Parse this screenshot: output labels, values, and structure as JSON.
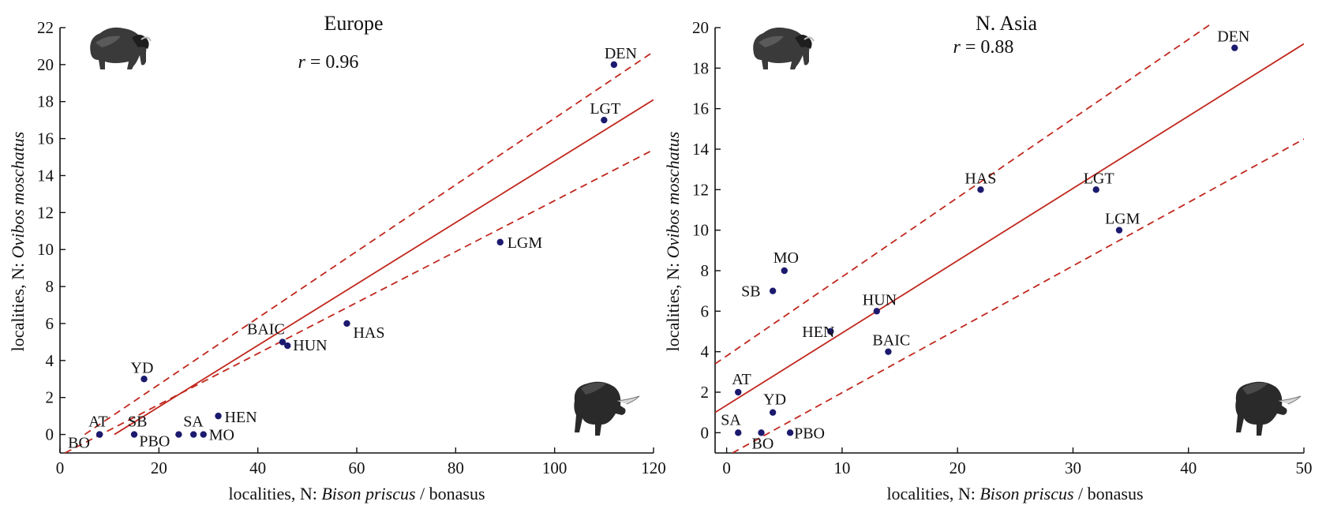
{
  "colors": {
    "points": "#1c1a6e",
    "fit_line": "#c0281e",
    "axes": "#111111"
  },
  "icons": [
    "musk-ox-icon",
    "bison-icon"
  ],
  "chart_data": [
    {
      "type": "scatter",
      "title": "Europe",
      "annotation": {
        "symbol": "r",
        "text": " = 0.96"
      },
      "xlabel": {
        "prefix": "localities, N: ",
        "italic": "Bison priscus",
        "suffix": " / bonasus"
      },
      "ylabel": {
        "prefix": "localities, N: ",
        "italic": "Ovibos moschatus"
      },
      "xlim": [
        0,
        120
      ],
      "ylim": [
        -1,
        22
      ],
      "xticks": [
        0,
        20,
        40,
        60,
        80,
        100,
        120
      ],
      "yticks": [
        0,
        2,
        4,
        6,
        8,
        10,
        12,
        14,
        16,
        18,
        20,
        22
      ],
      "grid": false,
      "points": [
        {
          "label": "DEN",
          "x": 112,
          "y": 20
        },
        {
          "label": "LGT",
          "x": 110,
          "y": 17
        },
        {
          "label": "LGM",
          "x": 89,
          "y": 10.4
        },
        {
          "label": "HAS",
          "x": 58,
          "y": 6
        },
        {
          "label": "BAIC",
          "x": 45,
          "y": 5
        },
        {
          "label": "HUN",
          "x": 46,
          "y": 4.8
        },
        {
          "label": "YD",
          "x": 17,
          "y": 3
        },
        {
          "label": "HEN",
          "x": 32,
          "y": 1
        },
        {
          "label": "SA",
          "x": 27,
          "y": 0
        },
        {
          "label": "MO",
          "x": 29,
          "y": 0
        },
        {
          "label": "PBO",
          "x": 24,
          "y": 0
        },
        {
          "label": "SB",
          "x": 15,
          "y": 0
        },
        {
          "label": "AT",
          "x": 8,
          "y": 0
        },
        {
          "label": "BO",
          "x": 8,
          "y": 0
        }
      ],
      "fit": {
        "x": [
          11,
          120
        ],
        "y": [
          0,
          18.1
        ]
      },
      "ci_upper": {
        "x": [
          5,
          120
        ],
        "y": [
          0,
          20.7
        ]
      },
      "ci_lower": {
        "x": [
          1,
          120
        ],
        "y": [
          -1,
          15.4
        ]
      }
    },
    {
      "type": "scatter",
      "title": "N. Asia",
      "annotation": {
        "symbol": "r",
        "text": " = 0.88"
      },
      "xlabel": {
        "prefix": "localities, N: ",
        "italic": "Bison priscus",
        "suffix": " / bonasus"
      },
      "ylabel": {
        "prefix": "localities, N: ",
        "italic": "Ovibos moschatus"
      },
      "xlim": [
        -1,
        50
      ],
      "ylim": [
        -1,
        20
      ],
      "xticks": [
        0,
        10,
        20,
        30,
        40,
        50
      ],
      "yticks": [
        0,
        2,
        4,
        6,
        8,
        10,
        12,
        14,
        16,
        18,
        20
      ],
      "grid": false,
      "points": [
        {
          "label": "DEN",
          "x": 44,
          "y": 19
        },
        {
          "label": "LGT",
          "x": 32,
          "y": 12
        },
        {
          "label": "LGM",
          "x": 34,
          "y": 10
        },
        {
          "label": "HAS",
          "x": 22,
          "y": 12
        },
        {
          "label": "MO",
          "x": 5,
          "y": 8
        },
        {
          "label": "SB",
          "x": 4,
          "y": 7
        },
        {
          "label": "HUN",
          "x": 13,
          "y": 6
        },
        {
          "label": "HEN",
          "x": 9,
          "y": 5
        },
        {
          "label": "BAIC",
          "x": 14,
          "y": 4
        },
        {
          "label": "AT",
          "x": 1,
          "y": 2
        },
        {
          "label": "YD",
          "x": 4,
          "y": 1
        },
        {
          "label": "SA",
          "x": 1,
          "y": 0
        },
        {
          "label": "BO",
          "x": 3,
          "y": 0
        },
        {
          "label": "PBO",
          "x": 5.5,
          "y": 0
        }
      ],
      "fit": {
        "x": [
          -1,
          50
        ],
        "y": [
          1,
          19.2
        ]
      },
      "ci_upper": {
        "x": [
          -1,
          42
        ],
        "y": [
          3.4,
          20.2
        ]
      },
      "ci_lower": {
        "x": [
          0.5,
          50
        ],
        "y": [
          -1,
          14.5
        ]
      }
    }
  ]
}
